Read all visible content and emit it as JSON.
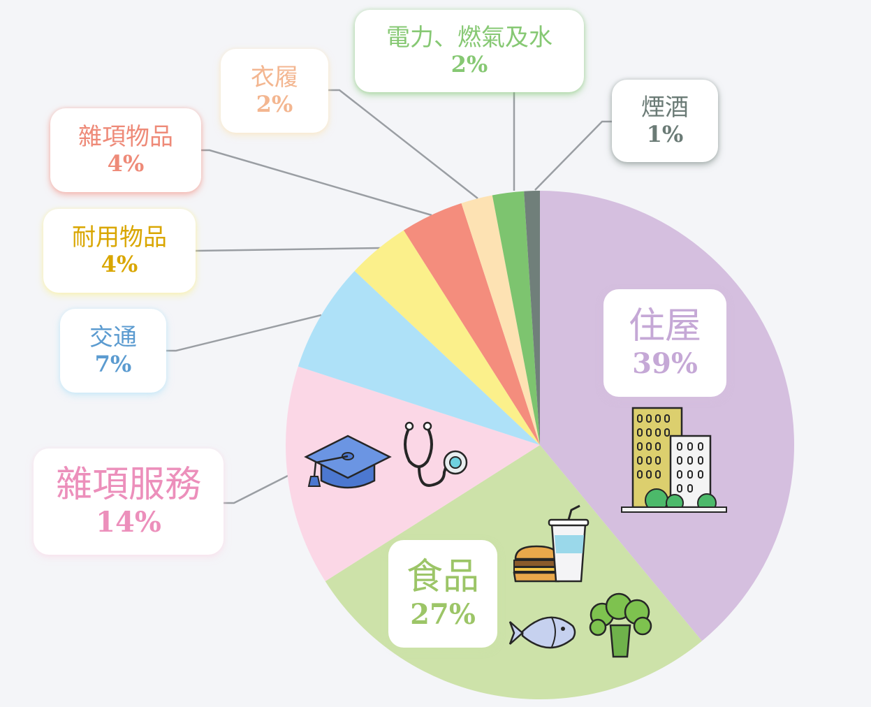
{
  "chart_data": {
    "type": "pie",
    "slices": [
      {
        "label": "住屋",
        "value": 39,
        "value_label": "39%",
        "color": "#d5bfdf",
        "text_color": "#c5a8d6"
      },
      {
        "label": "食品",
        "value": 27,
        "value_label": "27%",
        "color": "#cde2a9",
        "text_color": "#9cc567"
      },
      {
        "label": "雜項服務",
        "value": 14,
        "value_label": "14%",
        "color": "#fbd7e6",
        "text_color": "#ec8fbb"
      },
      {
        "label": "交通",
        "value": 7,
        "value_label": "7%",
        "color": "#aee1f8",
        "text_color": "#5b9bd0"
      },
      {
        "label": "耐用物品",
        "value": 4,
        "value_label": "4%",
        "color": "#fbf08b",
        "text_color": "#d9a600"
      },
      {
        "label": "雜項物品",
        "value": 4,
        "value_label": "4%",
        "color": "#f48d7d",
        "text_color": "#ee8a78"
      },
      {
        "label": "衣履",
        "value": 2,
        "value_label": "2%",
        "color": "#fde2b3",
        "text_color": "#f3b690"
      },
      {
        "label": "電力、燃氣及水",
        "value": 2,
        "value_label": "2%",
        "color": "#7dc46f",
        "text_color": "#86c873"
      },
      {
        "label": "煙酒",
        "value": 1,
        "value_label": "1%",
        "color": "#707f7a",
        "text_color": "#6b7b76"
      }
    ]
  },
  "icons": [
    "buildings-icon",
    "burger-and-drink-icon",
    "fish-icon",
    "broccoli-icon",
    "graduation-cap-icon",
    "stethoscope-icon"
  ]
}
